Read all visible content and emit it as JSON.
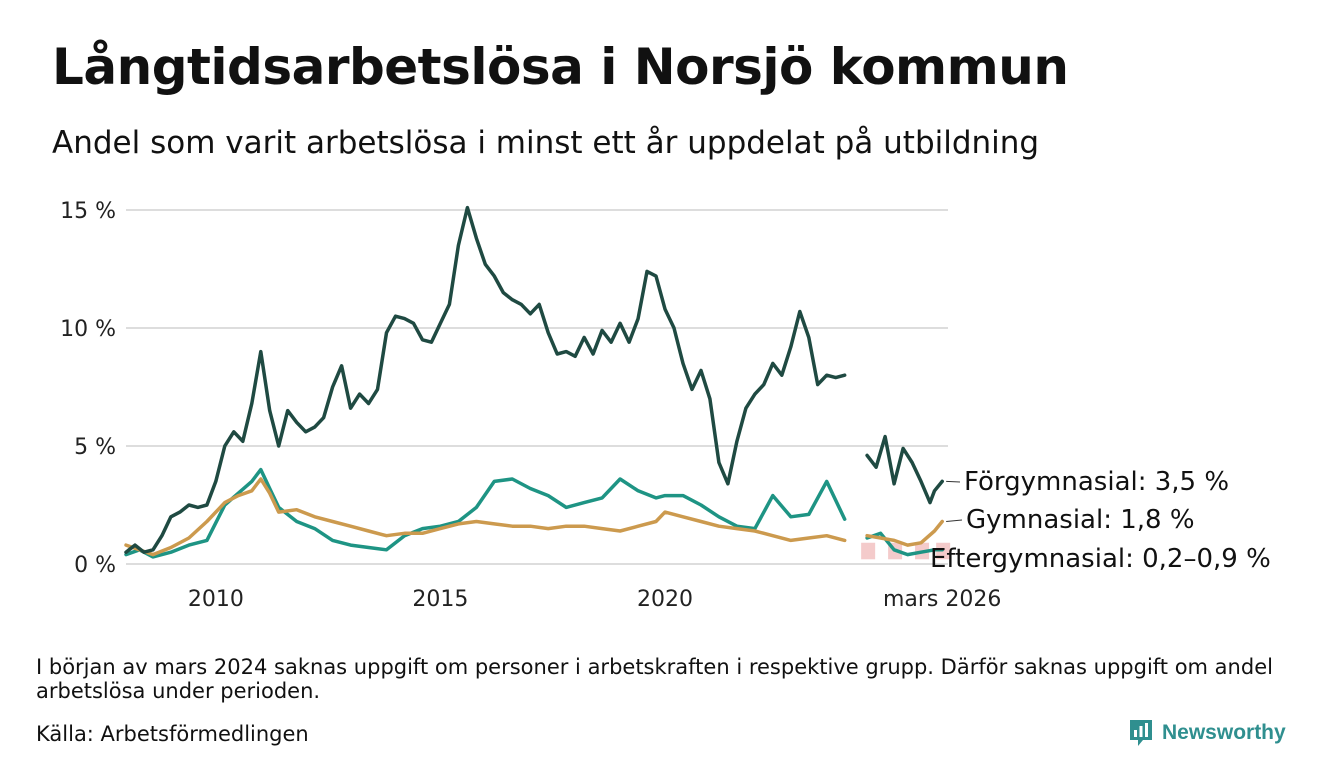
{
  "title": "Långtidsarbetslösa i Norsjö kommun",
  "subtitle": "Andel som varit arbetslösa i minst ett år uppdelat på utbildning",
  "note": "I början av mars 2024 saknas uppgift om personer i arbetskraften i respektive grupp. Därför saknas uppgift om andel arbetslösa under perioden.",
  "source": "Källa: Arbetsförmedlingen",
  "brand": "Newsworthy",
  "colors": {
    "forgymnasial": "#1f4a42",
    "gymnasial": "#cc9a4e",
    "eftergymnasial": "#1e9484",
    "grid": "#dddddd",
    "uncertainty": "#f2c2c2",
    "brand": "#2f8f8f"
  },
  "chart_data": {
    "type": "line",
    "title": "Långtidsarbetslösa i Norsjö kommun",
    "ylabel": "",
    "xlabel": "",
    "ylim": [
      0,
      15
    ],
    "y_ticks": [
      "0 %",
      "5 %",
      "10 %",
      "15 %"
    ],
    "y_tick_values": [
      0,
      5,
      10,
      15
    ],
    "x_ticks": [
      "2010",
      "2015",
      "2020",
      "mars 2026"
    ],
    "x_tick_values": [
      2010,
      2015,
      2020,
      2026.17
    ],
    "xlim": [
      2008.0,
      2026.3
    ],
    "gap": "mars 2024 – hösten 2024",
    "series": [
      {
        "name": "Förgymnasial",
        "label": "Förgymnasial: 3,5 %",
        "color": "#1f4a42",
        "segments": [
          {
            "x": [
              2008.0,
              2008.2,
              2008.4,
              2008.6,
              2008.8,
              2009.0,
              2009.2,
              2009.4,
              2009.6,
              2009.8,
              2010.0,
              2010.2,
              2010.4,
              2010.6,
              2010.8,
              2011.0,
              2011.2,
              2011.4,
              2011.6,
              2011.8,
              2012.0,
              2012.2,
              2012.4,
              2012.6,
              2012.8,
              2013.0,
              2013.2,
              2013.4,
              2013.6,
              2013.8,
              2014.0,
              2014.2,
              2014.4,
              2014.6,
              2014.8,
              2015.0,
              2015.2,
              2015.4,
              2015.6,
              2015.8,
              2016.0,
              2016.2,
              2016.4,
              2016.6,
              2016.8,
              2017.0,
              2017.2,
              2017.4,
              2017.6,
              2017.8,
              2018.0,
              2018.2,
              2018.4,
              2018.6,
              2018.8,
              2019.0,
              2019.2,
              2019.4,
              2019.6,
              2019.8,
              2020.0,
              2020.2,
              2020.4,
              2020.6,
              2020.8,
              2021.0,
              2021.2,
              2021.4,
              2021.6,
              2021.8,
              2022.0,
              2022.2,
              2022.4,
              2022.6,
              2022.8,
              2023.0,
              2023.2,
              2023.4,
              2023.6,
              2023.8,
              2024.0
            ],
            "y": [
              0.5,
              0.8,
              0.5,
              0.6,
              1.2,
              2.0,
              2.2,
              2.5,
              2.4,
              2.5,
              3.5,
              5.0,
              5.6,
              5.2,
              6.8,
              9.0,
              6.5,
              5.0,
              6.5,
              6.0,
              5.6,
              5.8,
              6.2,
              7.5,
              8.4,
              6.6,
              7.2,
              6.8,
              7.4,
              9.8,
              10.5,
              10.4,
              10.2,
              9.5,
              9.4,
              10.2,
              11.0,
              13.5,
              15.1,
              13.8,
              12.7,
              12.2,
              11.5,
              11.2,
              11.0,
              10.6,
              11.0,
              9.8,
              8.9,
              9.0,
              8.8,
              9.6,
              8.9,
              9.9,
              9.4,
              10.2,
              9.4,
              10.4,
              12.4,
              12.2,
              10.8,
              10.0,
              8.5,
              7.4,
              8.2,
              7.0,
              4.3,
              3.4,
              5.2,
              6.6,
              7.2,
              7.6,
              8.5,
              8.0,
              9.2,
              10.7,
              9.6,
              7.6,
              8.0,
              7.9,
              8.0
            ]
          },
          {
            "x": [
              2024.5,
              2024.7,
              2024.9,
              2025.1,
              2025.3,
              2025.5,
              2025.7,
              2025.9,
              2026.0,
              2026.17
            ],
            "y": [
              4.6,
              4.1,
              5.4,
              3.4,
              4.9,
              4.3,
              3.5,
              2.6,
              3.1,
              3.5
            ]
          }
        ]
      },
      {
        "name": "Gymnasial",
        "label": "Gymnasial: 1,8 %",
        "color": "#cc9a4e",
        "segments": [
          {
            "x": [
              2008.0,
              2008.3,
              2008.6,
              2009.0,
              2009.4,
              2009.8,
              2010.2,
              2010.5,
              2010.8,
              2011.0,
              2011.2,
              2011.4,
              2011.8,
              2012.2,
              2012.6,
              2013.0,
              2013.4,
              2013.8,
              2014.2,
              2014.6,
              2015.0,
              2015.4,
              2015.8,
              2016.2,
              2016.6,
              2017.0,
              2017.4,
              2017.8,
              2018.2,
              2018.6,
              2019.0,
              2019.4,
              2019.8,
              2020.0,
              2020.4,
              2020.8,
              2021.2,
              2021.6,
              2022.0,
              2022.4,
              2022.8,
              2023.2,
              2023.6,
              2024.0
            ],
            "y": [
              0.8,
              0.6,
              0.4,
              0.7,
              1.1,
              1.8,
              2.6,
              2.9,
              3.1,
              3.6,
              3.0,
              2.2,
              2.3,
              2.0,
              1.8,
              1.6,
              1.4,
              1.2,
              1.3,
              1.3,
              1.5,
              1.7,
              1.8,
              1.7,
              1.6,
              1.6,
              1.5,
              1.6,
              1.6,
              1.5,
              1.4,
              1.6,
              1.8,
              2.2,
              2.0,
              1.8,
              1.6,
              1.5,
              1.4,
              1.2,
              1.0,
              1.1,
              1.2,
              1.0
            ]
          },
          {
            "x": [
              2024.5,
              2024.8,
              2025.1,
              2025.4,
              2025.7,
              2026.0,
              2026.17
            ],
            "y": [
              1.2,
              1.1,
              1.0,
              0.8,
              0.9,
              1.4,
              1.8
            ]
          }
        ]
      },
      {
        "name": "Eftergymnasial",
        "label": "Eftergymnasial: 0,2–0,9 %",
        "color": "#1e9484",
        "segments": [
          {
            "x": [
              2008.0,
              2008.3,
              2008.6,
              2009.0,
              2009.4,
              2009.8,
              2010.2,
              2010.5,
              2010.8,
              2011.0,
              2011.2,
              2011.4,
              2011.8,
              2012.2,
              2012.6,
              2013.0,
              2013.4,
              2013.8,
              2014.2,
              2014.6,
              2015.0,
              2015.4,
              2015.8,
              2016.2,
              2016.6,
              2017.0,
              2017.4,
              2017.8,
              2018.2,
              2018.6,
              2019.0,
              2019.4,
              2019.8,
              2020.0,
              2020.4,
              2020.8,
              2021.2,
              2021.6,
              2022.0,
              2022.4,
              2022.8,
              2023.2,
              2023.6,
              2024.0
            ],
            "y": [
              0.4,
              0.6,
              0.3,
              0.5,
              0.8,
              1.0,
              2.5,
              3.0,
              3.5,
              4.0,
              3.2,
              2.4,
              1.8,
              1.5,
              1.0,
              0.8,
              0.7,
              0.6,
              1.2,
              1.5,
              1.6,
              1.8,
              2.4,
              3.5,
              3.6,
              3.2,
              2.9,
              2.4,
              2.6,
              2.8,
              3.6,
              3.1,
              2.8,
              2.9,
              2.9,
              2.5,
              2.0,
              1.6,
              1.5,
              2.9,
              2.0,
              2.1,
              3.5,
              1.9
            ]
          },
          {
            "x": [
              2024.5,
              2024.8,
              2025.1,
              2025.4,
              2025.7,
              2026.0,
              2026.17
            ],
            "y": [
              1.1,
              1.3,
              0.6,
              0.4,
              0.5,
              0.6,
              0.6
            ]
          }
        ]
      }
    ]
  }
}
